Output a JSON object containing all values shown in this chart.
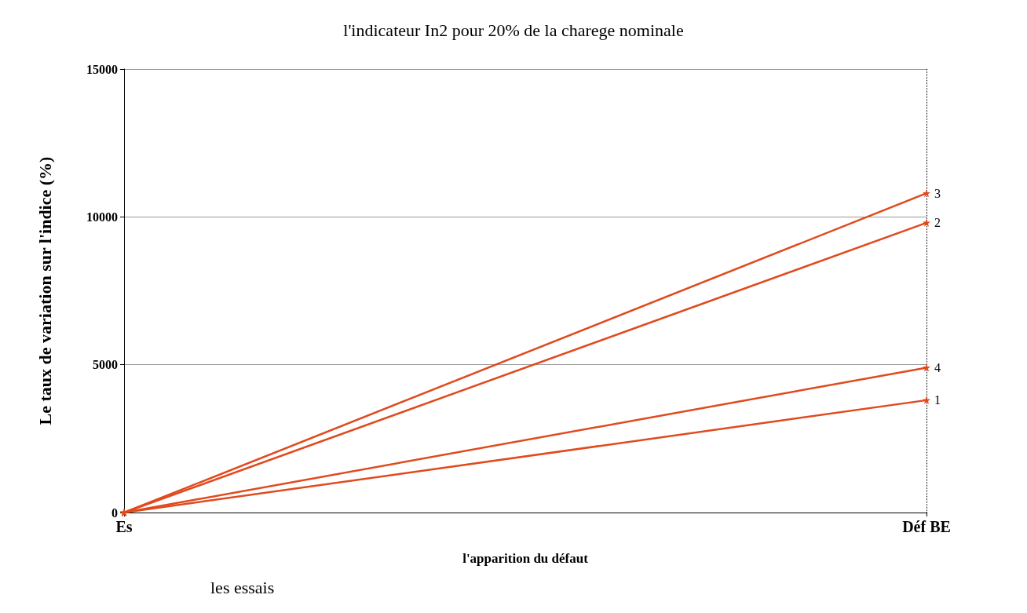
{
  "chart_data": {
    "type": "line",
    "title": "l'indicateur In2 pour 20% de la charege nominale",
    "xlabel": "l'apparition du défaut",
    "ylabel": "Le taux de variation sur l'indice (%)",
    "annotations": [
      "les essais"
    ],
    "categories": [
      "Es",
      "Déf BE"
    ],
    "series": [
      {
        "name": "1",
        "color": "#e04a1e",
        "values": [
          0,
          3800
        ]
      },
      {
        "name": "2",
        "color": "#e04a1e",
        "values": [
          0,
          9800
        ]
      },
      {
        "name": "3",
        "color": "#e04a1e",
        "values": [
          0,
          10800
        ]
      },
      {
        "name": "4",
        "color": "#e04a1e",
        "values": [
          0,
          4900
        ]
      }
    ],
    "ylim": [
      0,
      15000
    ],
    "yticks": [
      0,
      5000,
      10000,
      15000
    ],
    "grid": true,
    "marker": "star",
    "line_style": "solid",
    "legend": false
  }
}
